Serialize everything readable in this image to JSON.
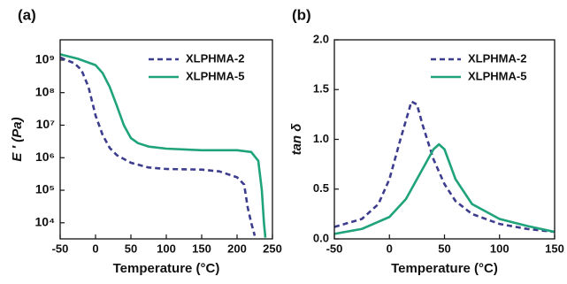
{
  "chart_data": [
    {
      "type": "line",
      "panel": "(a)",
      "xlabel": "Temperature (°C)",
      "ylabel": "E ′ (Pa)",
      "yscale": "log",
      "xlim": [
        -50,
        250
      ],
      "xticks": [
        -50,
        0,
        50,
        100,
        150,
        200,
        250
      ],
      "ylim": [
        3200,
        4200000000
      ],
      "yticks": [
        {
          "value": 10000,
          "label": "10⁴"
        },
        {
          "value": 100000,
          "label": "10⁵"
        },
        {
          "value": 1000000,
          "label": "10⁶"
        },
        {
          "value": 10000000,
          "label": "10⁷"
        },
        {
          "value": 100000000,
          "label": "10⁸"
        },
        {
          "value": 1000000000,
          "label": "10⁹"
        }
      ],
      "legend": "upper right",
      "series": [
        {
          "name": "XLPHMA-2",
          "color": "#3d3d8f",
          "linestyle": "dashed",
          "x": [
            -50,
            -30,
            -20,
            -10,
            0,
            10,
            20,
            30,
            50,
            75,
            100,
            150,
            175,
            200,
            210,
            215,
            220,
            225
          ],
          "values": [
            1200000000,
            800000000,
            500000000,
            150000000,
            20000000,
            5000000,
            2000000,
            1200000,
            700000,
            500000,
            450000,
            430000,
            380000,
            250000,
            150000,
            30000,
            10000,
            4000
          ]
        },
        {
          "name": "XLPHMA-5",
          "color": "#1fa37a",
          "linestyle": "solid",
          "x": [
            -50,
            -25,
            0,
            10,
            20,
            30,
            40,
            50,
            60,
            75,
            100,
            150,
            200,
            220,
            230,
            235,
            238,
            240
          ],
          "values": [
            1500000000,
            1100000000,
            700000000,
            400000000,
            150000000,
            40000000,
            10000000,
            4000000,
            2800000,
            2200000,
            1900000,
            1700000,
            1700000,
            1500000,
            800000,
            100000,
            10000,
            3500
          ]
        }
      ]
    },
    {
      "type": "line",
      "panel": "(b)",
      "xlabel": "Temperature (°C)",
      "ylabel": "tan δ",
      "xlim": [
        -50,
        150
      ],
      "xticks": [
        -50,
        0,
        50,
        100,
        150
      ],
      "ylim": [
        0,
        2.0
      ],
      "yticks": [
        {
          "value": 0,
          "label": "0.0"
        },
        {
          "value": 0.5,
          "label": "0.5"
        },
        {
          "value": 1,
          "label": "1.0"
        },
        {
          "value": 1.5,
          "label": "1.5"
        },
        {
          "value": 2,
          "label": "2.0"
        }
      ],
      "legend": "upper right",
      "series": [
        {
          "name": "XLPHMA-2",
          "color": "#3d3d8f",
          "linestyle": "dashed",
          "x": [
            -50,
            -25,
            -10,
            0,
            10,
            20,
            25,
            30,
            40,
            50,
            60,
            75,
            100,
            125,
            150
          ],
          "values": [
            0.12,
            0.2,
            0.35,
            0.6,
            1.0,
            1.38,
            1.35,
            1.15,
            0.8,
            0.55,
            0.38,
            0.25,
            0.15,
            0.1,
            0.07
          ]
        },
        {
          "name": "XLPHMA-5",
          "color": "#1fa37a",
          "linestyle": "solid",
          "x": [
            -50,
            -25,
            0,
            15,
            30,
            40,
            45,
            50,
            60,
            75,
            100,
            125,
            150
          ],
          "values": [
            0.05,
            0.1,
            0.22,
            0.4,
            0.7,
            0.9,
            0.95,
            0.9,
            0.6,
            0.35,
            0.2,
            0.13,
            0.07
          ]
        }
      ]
    }
  ]
}
